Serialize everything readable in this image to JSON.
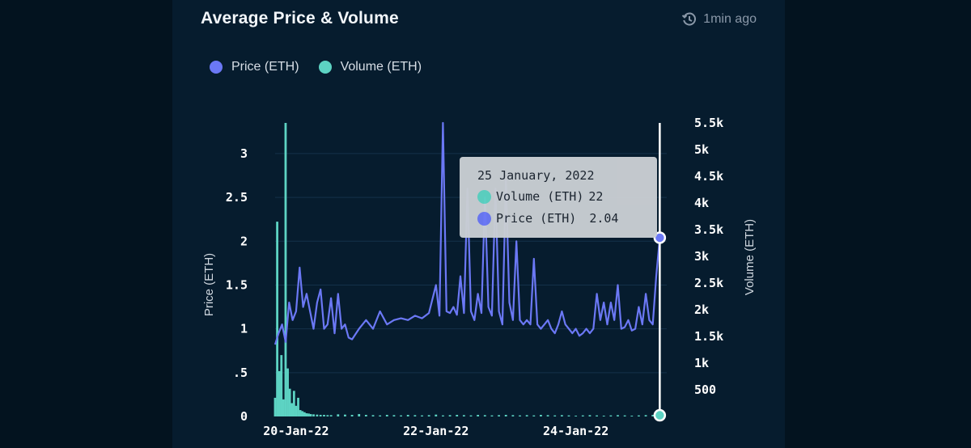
{
  "card": {
    "title": "Average Price & Volume",
    "updated": "1min ago",
    "updated_icon": "history-clock-icon"
  },
  "legend": [
    {
      "label": "Price (ETH)",
      "color": "#6b78f5"
    },
    {
      "label": "Volume (ETH)",
      "color": "#5dd3c3"
    }
  ],
  "tooltip": {
    "date": "25 January, 2022",
    "volume_label": "Volume (ETH)",
    "volume_value": "22",
    "price_label": "Price (ETH)",
    "price_value": "2.04"
  },
  "chart_data": {
    "type": "line",
    "xlabel": "",
    "ylabel_left": "Price (ETH)",
    "ylabel_right": "Volume (ETH)",
    "ylim_left": [
      0,
      3.35
    ],
    "ylim_right": [
      0,
      5500
    ],
    "x_ticks": [
      "20-Jan-22",
      "22-Jan-22",
      "24-Jan-22"
    ],
    "y_ticks_left": [
      {
        "value": 0,
        "label": "0"
      },
      {
        "value": 0.5,
        "label": ".5"
      },
      {
        "value": 1,
        "label": "1"
      },
      {
        "value": 1.5,
        "label": "1.5"
      },
      {
        "value": 2,
        "label": "2"
      },
      {
        "value": 2.5,
        "label": "2.5"
      },
      {
        "value": 3,
        "label": "3"
      }
    ],
    "y_ticks_right": [
      {
        "value": 500,
        "label": "500"
      },
      {
        "value": 1000,
        "label": "1k"
      },
      {
        "value": 1500,
        "label": "1.5k"
      },
      {
        "value": 2000,
        "label": "2k"
      },
      {
        "value": 2500,
        "label": "2.5k"
      },
      {
        "value": 3000,
        "label": "3k"
      },
      {
        "value": 3500,
        "label": "3.5k"
      },
      {
        "value": 4000,
        "label": "4k"
      },
      {
        "value": 4500,
        "label": "4.5k"
      },
      {
        "value": 5000,
        "label": "5k"
      },
      {
        "value": 5500,
        "label": "5.5k"
      }
    ],
    "x_range_days": [
      -0.3,
      5.3
    ],
    "x_tick_days": [
      0,
      2,
      4
    ],
    "grid": true,
    "cursor_day": 5.2,
    "series": [
      {
        "name": "Price (ETH)",
        "axis": "left",
        "color": "#6b78f5",
        "x": [
          -0.3,
          -0.25,
          -0.2,
          -0.15,
          -0.1,
          -0.05,
          0,
          0.05,
          0.1,
          0.15,
          0.2,
          0.25,
          0.3,
          0.35,
          0.4,
          0.45,
          0.5,
          0.55,
          0.6,
          0.65,
          0.7,
          0.75,
          0.8,
          0.9,
          1.0,
          1.1,
          1.2,
          1.3,
          1.4,
          1.5,
          1.6,
          1.7,
          1.8,
          1.9,
          2.0,
          2.05,
          2.1,
          2.15,
          2.2,
          2.25,
          2.3,
          2.35,
          2.4,
          2.45,
          2.5,
          2.55,
          2.6,
          2.65,
          2.7,
          2.75,
          2.8,
          2.85,
          2.9,
          2.95,
          3.0,
          3.05,
          3.1,
          3.15,
          3.2,
          3.25,
          3.3,
          3.35,
          3.4,
          3.45,
          3.5,
          3.55,
          3.6,
          3.65,
          3.7,
          3.75,
          3.8,
          3.85,
          3.9,
          3.95,
          4.0,
          4.05,
          4.1,
          4.15,
          4.2,
          4.25,
          4.3,
          4.35,
          4.4,
          4.45,
          4.5,
          4.55,
          4.6,
          4.65,
          4.7,
          4.75,
          4.8,
          4.85,
          4.9,
          4.95,
          5.0,
          5.05,
          5.1,
          5.15,
          5.2
        ],
        "values": [
          0.82,
          0.95,
          1.05,
          0.85,
          1.3,
          1.1,
          1.2,
          1.7,
          1.25,
          1.4,
          1.2,
          1.0,
          1.3,
          1.45,
          1.0,
          1.05,
          1.35,
          0.95,
          1.4,
          1.0,
          1.05,
          0.9,
          0.88,
          1.0,
          1.1,
          1.0,
          1.2,
          1.05,
          1.1,
          1.12,
          1.1,
          1.15,
          1.12,
          1.18,
          1.5,
          1.15,
          3.35,
          1.2,
          1.18,
          1.25,
          1.16,
          1.6,
          1.18,
          2.6,
          1.2,
          1.1,
          1.4,
          1.18,
          2.5,
          1.25,
          1.15,
          2.6,
          1.2,
          1.05,
          2.7,
          1.3,
          1.1,
          2.0,
          1.1,
          1.05,
          1.1,
          1.05,
          1.8,
          1.05,
          1.0,
          1.05,
          1.1,
          1.0,
          0.95,
          1.05,
          1.2,
          1.05,
          1.0,
          0.95,
          1.0,
          0.92,
          0.95,
          1.0,
          0.95,
          1.0,
          1.4,
          1.1,
          1.3,
          1.05,
          1.3,
          1.1,
          1.5,
          1.0,
          1.02,
          1.1,
          0.98,
          1.0,
          1.25,
          1.05,
          1.4,
          1.1,
          1.05,
          1.6,
          2.04
        ]
      },
      {
        "name": "Volume (ETH)",
        "axis": "right",
        "color": "#5dd3c3",
        "x": [
          -0.3,
          -0.27,
          -0.24,
          -0.21,
          -0.18,
          -0.15,
          -0.12,
          -0.09,
          -0.06,
          -0.03,
          0,
          0.03,
          0.06,
          0.09,
          0.12,
          0.15,
          0.18,
          0.21,
          0.25,
          0.3,
          0.35,
          0.4,
          0.45,
          0.5,
          0.6,
          0.7,
          0.8,
          0.9,
          1.0,
          1.1,
          1.2,
          1.3,
          1.4,
          1.5,
          1.6,
          1.7,
          1.8,
          1.9,
          2.0,
          2.1,
          2.2,
          2.3,
          2.4,
          2.5,
          2.6,
          2.7,
          2.8,
          2.9,
          3.0,
          3.1,
          3.2,
          3.3,
          3.4,
          3.5,
          3.6,
          3.7,
          3.8,
          3.9,
          4.0,
          4.1,
          4.2,
          4.3,
          4.4,
          4.5,
          4.6,
          4.7,
          4.8,
          4.9,
          5.0,
          5.1,
          5.2
        ],
        "values": [
          350,
          3650,
          850,
          1150,
          320,
          5500,
          900,
          520,
          250,
          480,
          200,
          350,
          120,
          100,
          80,
          60,
          55,
          45,
          40,
          35,
          30,
          30,
          25,
          25,
          40,
          35,
          30,
          45,
          30,
          25,
          20,
          30,
          25,
          20,
          30,
          25,
          20,
          25,
          35,
          20,
          25,
          30,
          25,
          20,
          30,
          25,
          20,
          25,
          30,
          25,
          20,
          25,
          20,
          30,
          25,
          20,
          25,
          20,
          15,
          20,
          25,
          20,
          15,
          20,
          25,
          20,
          15,
          20,
          25,
          30,
          22
        ]
      }
    ]
  }
}
